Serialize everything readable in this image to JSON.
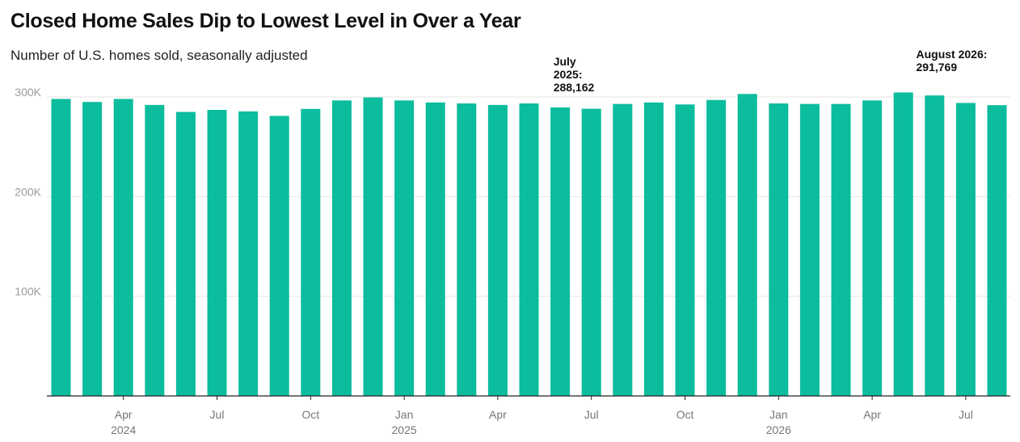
{
  "chart_data": {
    "type": "bar",
    "title": "Closed Home Sales Dip to Lowest Level in Over a Year",
    "subtitle": "Number of U.S. homes sold, seasonally adjusted",
    "x": [
      "2024-02",
      "2024-03",
      "2024-04",
      "2024-05",
      "2024-06",
      "2024-07",
      "2024-08",
      "2024-09",
      "2024-10",
      "2024-11",
      "2024-12",
      "2025-01",
      "2025-02",
      "2025-03",
      "2025-04",
      "2025-05",
      "2025-06",
      "2025-07",
      "2025-08",
      "2025-09",
      "2025-10",
      "2025-11",
      "2025-12",
      "2026-01",
      "2026-02",
      "2026-03",
      "2026-04",
      "2026-05",
      "2026-06",
      "2026-07",
      "2026-08"
    ],
    "values": [
      298000,
      295000,
      298000,
      292000,
      285000,
      287000,
      285500,
      281000,
      288000,
      296500,
      299500,
      296500,
      294500,
      293500,
      292000,
      293500,
      289500,
      288162,
      293000,
      294500,
      292500,
      297000,
      303000,
      293500,
      293000,
      293000,
      296500,
      304500,
      301500,
      294000,
      291769
    ],
    "ylim": [
      0,
      300000
    ],
    "yticks": [
      {
        "value": 100000,
        "label": "100K"
      },
      {
        "value": 200000,
        "label": "200K"
      },
      {
        "value": 300000,
        "label": "300K"
      }
    ],
    "xticks": [
      {
        "x": "2024-04",
        "label": "Apr",
        "year": "2024"
      },
      {
        "x": "2024-07",
        "label": "Jul",
        "year": ""
      },
      {
        "x": "2024-10",
        "label": "Oct",
        "year": ""
      },
      {
        "x": "2025-01",
        "label": "Jan",
        "year": "2025"
      },
      {
        "x": "2025-04",
        "label": "Apr",
        "year": ""
      },
      {
        "x": "2025-07",
        "label": "Jul",
        "year": ""
      },
      {
        "x": "2025-10",
        "label": "Oct",
        "year": ""
      },
      {
        "x": "2026-01",
        "label": "Jan",
        "year": "2026"
      },
      {
        "x": "2026-04",
        "label": "Apr",
        "year": ""
      },
      {
        "x": "2026-07",
        "label": "Jul",
        "year": ""
      }
    ],
    "annotations": [
      {
        "x": "2025-07",
        "lines": [
          "July",
          "2025:",
          "288,162"
        ]
      },
      {
        "x": "2026-08",
        "lines": [
          "August 2026:",
          "291,769"
        ]
      }
    ],
    "bar_color": "#0bbc9d",
    "grid": true
  }
}
